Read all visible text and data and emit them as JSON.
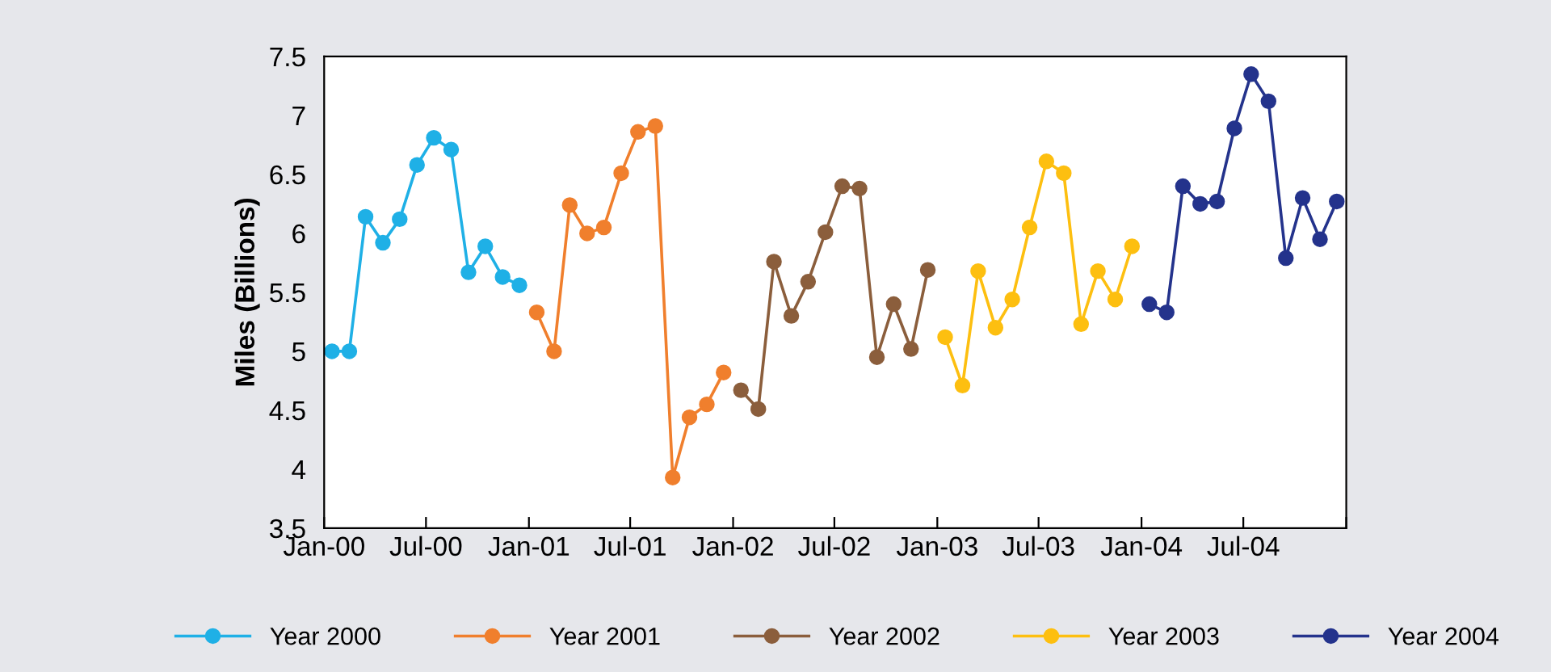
{
  "chart_data": {
    "type": "line",
    "ylabel": "Miles (Billions)",
    "marker": "circle",
    "line_style": "solid",
    "grid": false,
    "legend": "bottom",
    "xlim": [
      "2000-01-01",
      "2005-01-01"
    ],
    "xticks": [
      {
        "value": "2000-01-01",
        "label": "Jan-00"
      },
      {
        "value": "2000-07-01",
        "label": "Jul-00"
      },
      {
        "value": "2001-01-01",
        "label": "Jan-01"
      },
      {
        "value": "2001-07-01",
        "label": "Jul-01"
      },
      {
        "value": "2002-01-01",
        "label": "Jan-02"
      },
      {
        "value": "2002-07-01",
        "label": "Jul-02"
      },
      {
        "value": "2003-01-01",
        "label": "Jan-03"
      },
      {
        "value": "2003-07-01",
        "label": "Jul-03"
      },
      {
        "value": "2004-01-01",
        "label": "Jan-04"
      },
      {
        "value": "2004-07-01",
        "label": "Jul-04"
      },
      {
        "value": "2005-01-01",
        "label": null
      }
    ],
    "ylim": [
      3.5,
      7.5
    ],
    "yticks": [
      3.5,
      4,
      4.5,
      5,
      5.5,
      6,
      6.5,
      7,
      7.5
    ],
    "series": [
      {
        "name": "Year 2000",
        "color": "#1fb0e6",
        "x": [
          "2000-01-15",
          "2000-02-15",
          "2000-03-15",
          "2000-04-15",
          "2000-05-15",
          "2000-06-15",
          "2000-07-15",
          "2000-08-15",
          "2000-09-15",
          "2000-10-15",
          "2000-11-15",
          "2000-12-15"
        ],
        "values": [
          5.0,
          5.0,
          6.14,
          5.92,
          6.12,
          6.58,
          6.81,
          6.71,
          5.67,
          5.89,
          5.63,
          5.56
        ]
      },
      {
        "name": "Year 2001",
        "color": "#f07f2d",
        "x": [
          "2001-01-15",
          "2001-02-15",
          "2001-03-15",
          "2001-04-15",
          "2001-05-15",
          "2001-06-15",
          "2001-07-15",
          "2001-08-15",
          "2001-09-15",
          "2001-10-15",
          "2001-11-15",
          "2001-12-15"
        ],
        "values": [
          5.33,
          5.0,
          6.24,
          6.0,
          6.05,
          6.51,
          6.86,
          6.91,
          3.93,
          4.44,
          4.55,
          4.82
        ]
      },
      {
        "name": "Year 2002",
        "color": "#8b5e3c",
        "x": [
          "2002-01-15",
          "2002-02-15",
          "2002-03-15",
          "2002-04-15",
          "2002-05-15",
          "2002-06-15",
          "2002-07-15",
          "2002-08-15",
          "2002-09-15",
          "2002-10-15",
          "2002-11-15",
          "2002-12-15"
        ],
        "values": [
          4.67,
          4.51,
          5.76,
          5.3,
          5.59,
          6.01,
          6.4,
          6.38,
          4.95,
          5.4,
          5.02,
          5.69
        ]
      },
      {
        "name": "Year 2003",
        "color": "#fdbf10",
        "x": [
          "2003-01-15",
          "2003-02-15",
          "2003-03-15",
          "2003-04-15",
          "2003-05-15",
          "2003-06-15",
          "2003-07-15",
          "2003-08-15",
          "2003-09-15",
          "2003-10-15",
          "2003-11-15",
          "2003-12-15"
        ],
        "values": [
          5.12,
          4.71,
          5.68,
          5.2,
          5.44,
          6.05,
          6.61,
          6.51,
          5.23,
          5.68,
          5.44,
          5.89
        ]
      },
      {
        "name": "Year 2004",
        "color": "#24338c",
        "x": [
          "2004-01-15",
          "2004-02-15",
          "2004-03-15",
          "2004-04-15",
          "2004-05-15",
          "2004-06-15",
          "2004-07-15",
          "2004-08-15",
          "2004-09-15",
          "2004-10-15",
          "2004-11-15",
          "2004-12-15"
        ],
        "values": [
          5.4,
          5.33,
          6.4,
          6.25,
          6.27,
          6.89,
          7.35,
          7.12,
          5.79,
          6.3,
          5.95,
          6.27
        ]
      }
    ]
  }
}
